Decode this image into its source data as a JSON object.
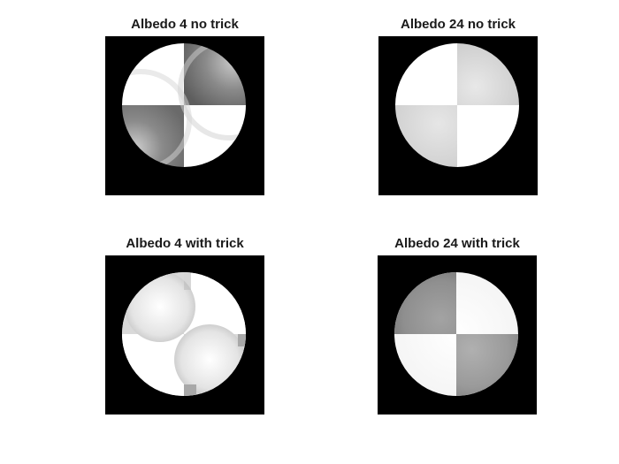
{
  "figure": {
    "panels": [
      {
        "title": "Albedo 4 no trick",
        "image": "rendered sphere: white top-left and bottom-right quadrants, shaded gray top-right and bottom-left quadrants with curved highlight bands, on black square background"
      },
      {
        "title": "Albedo 24 no trick",
        "image": "rendered sphere: white top-left and bottom-right quadrants, light gray top-right and bottom-left quadrants, on black square background"
      },
      {
        "title": "Albedo 4 with trick",
        "image": "rendered sphere: mostly white with faint gray top-right and bottom-right corner quadrants and blurred circular highlights, on black square background"
      },
      {
        "title": "Albedo 24 with trick",
        "image": "rendered sphere: gray top-left and bottom-right quadrants, white top-right and bottom-left quadrants with soft edge shading, on black square background"
      }
    ]
  }
}
